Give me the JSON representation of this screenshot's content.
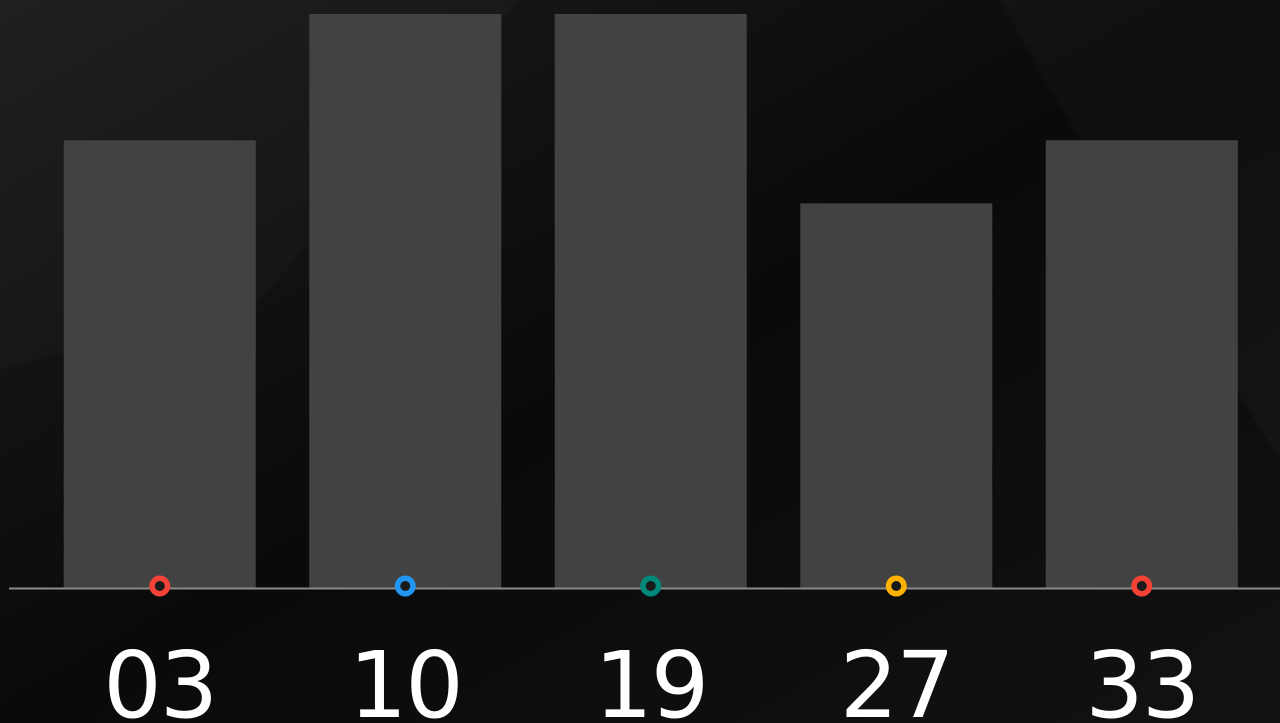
{
  "chart_data": {
    "type": "bar",
    "categories": [
      "03",
      "10",
      "19",
      "27",
      "33"
    ],
    "values": [
      78,
      100,
      100,
      67,
      78
    ],
    "color": "#424242",
    "colors": [
      "#f44336",
      "#2196f3",
      "#00897b",
      "#ffb300",
      "#f44336"
    ],
    "ylim": [
      0,
      100
    ]
  }
}
